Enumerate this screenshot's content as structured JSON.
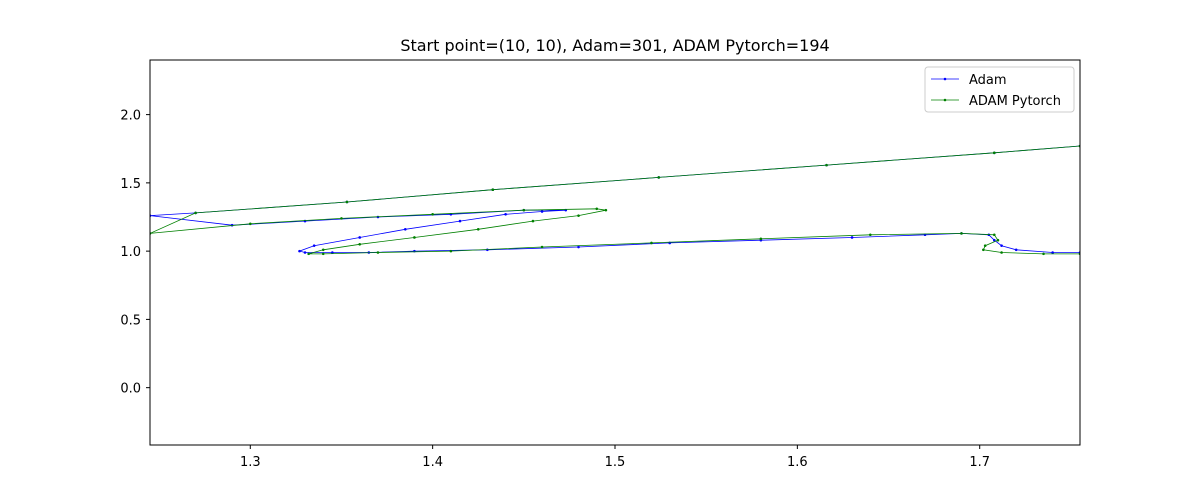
{
  "chart_data": {
    "type": "line",
    "title": "Start point=(10, 10), Adam=301, ADAM Pytorch=194",
    "xlabel": "",
    "ylabel": "",
    "xlim": [
      1.245,
      1.755
    ],
    "ylim": [
      -0.42,
      2.4
    ],
    "grid": false,
    "legend_position": "top-right",
    "xticks": [
      "1.3",
      "1.4",
      "1.5",
      "1.6",
      "1.7"
    ],
    "xtick_values": [
      1.3,
      1.4,
      1.5,
      1.6,
      1.7
    ],
    "yticks": [
      "0.0",
      "0.5",
      "1.0",
      "1.5",
      "2.0"
    ],
    "ytick_values": [
      0.0,
      0.5,
      1.0,
      1.5,
      2.0
    ],
    "series": [
      {
        "name": "Adam",
        "color": "#0000ff",
        "x": [
          1.755,
          1.708,
          1.616,
          1.524,
          1.433,
          1.353,
          1.27,
          1.245,
          1.29,
          1.33,
          1.37,
          1.41,
          1.45,
          1.473,
          1.46,
          1.44,
          1.415,
          1.385,
          1.36,
          1.335,
          1.327,
          1.33,
          1.345,
          1.365,
          1.39,
          1.43,
          1.48,
          1.53,
          1.58,
          1.63,
          1.67,
          1.69,
          1.705,
          1.708,
          1.712,
          1.72,
          1.74,
          1.755
        ],
        "y": [
          1.77,
          1.72,
          1.63,
          1.54,
          1.45,
          1.36,
          1.28,
          1.26,
          1.19,
          1.22,
          1.25,
          1.27,
          1.3,
          1.3,
          1.29,
          1.27,
          1.22,
          1.16,
          1.1,
          1.04,
          1.0,
          0.99,
          0.99,
          0.99,
          1.0,
          1.01,
          1.03,
          1.06,
          1.08,
          1.1,
          1.12,
          1.13,
          1.12,
          1.08,
          1.04,
          1.01,
          0.99,
          0.99
        ]
      },
      {
        "name": "ADAM Pytorch",
        "color": "#008000",
        "x": [
          1.755,
          1.708,
          1.616,
          1.524,
          1.433,
          1.353,
          1.27,
          1.245,
          1.3,
          1.35,
          1.4,
          1.45,
          1.49,
          1.495,
          1.48,
          1.455,
          1.425,
          1.39,
          1.36,
          1.34,
          1.332,
          1.34,
          1.37,
          1.41,
          1.46,
          1.52,
          1.58,
          1.64,
          1.69,
          1.708,
          1.71,
          1.703,
          1.702,
          1.712,
          1.735,
          1.755
        ],
        "y": [
          1.77,
          1.72,
          1.63,
          1.54,
          1.45,
          1.36,
          1.28,
          1.13,
          1.2,
          1.24,
          1.27,
          1.3,
          1.31,
          1.3,
          1.26,
          1.22,
          1.16,
          1.1,
          1.05,
          1.01,
          0.98,
          0.98,
          0.99,
          1.0,
          1.03,
          1.06,
          1.09,
          1.12,
          1.13,
          1.12,
          1.08,
          1.04,
          1.01,
          0.99,
          0.98,
          0.98
        ]
      }
    ]
  }
}
